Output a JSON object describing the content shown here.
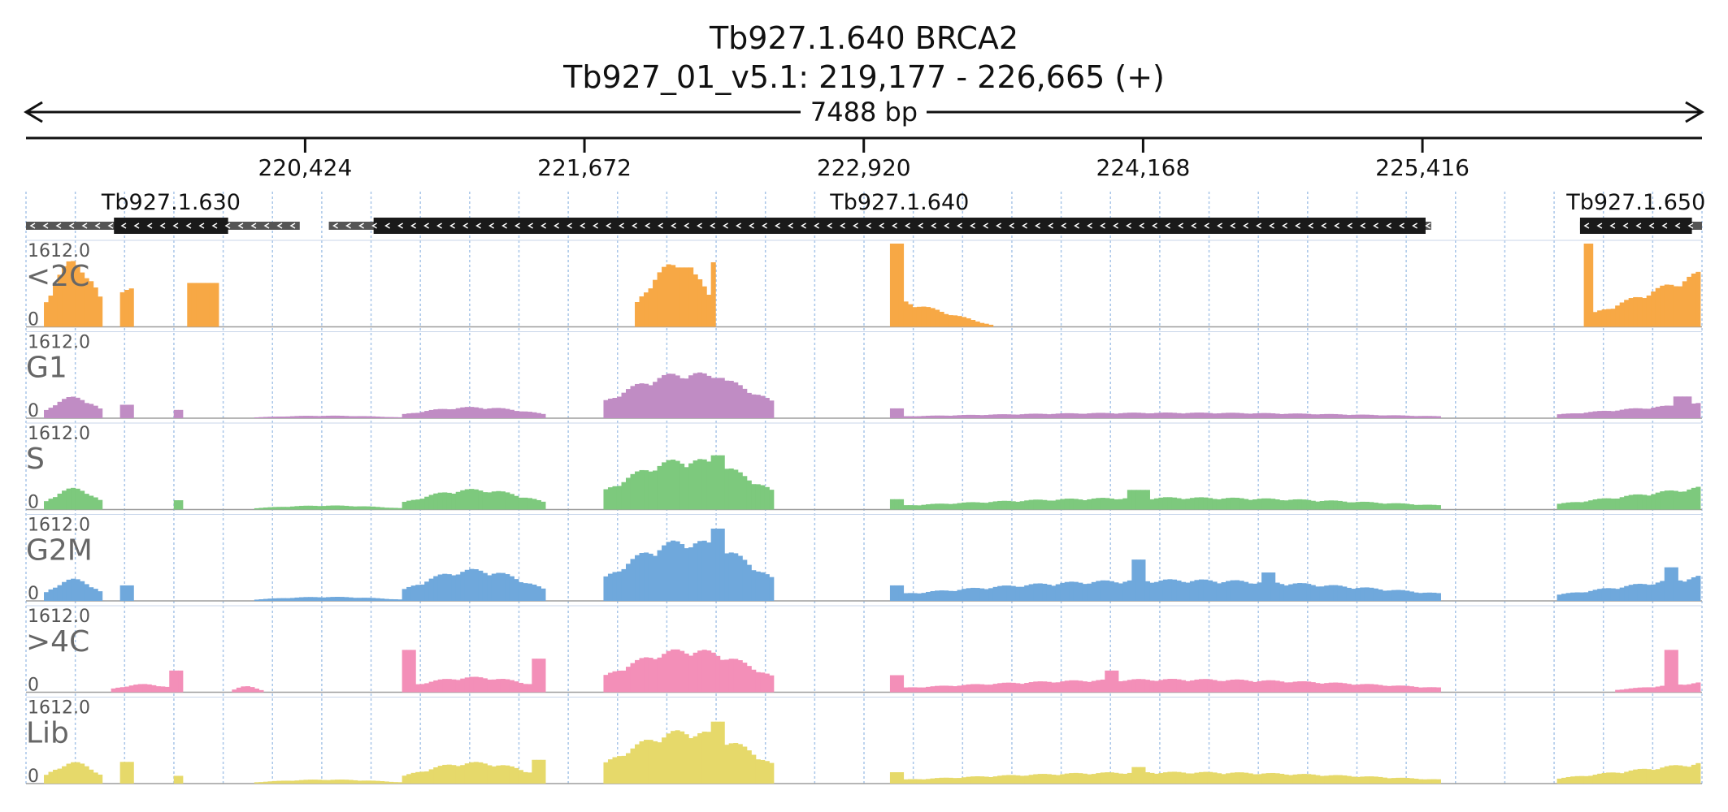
{
  "header": {
    "title": "Tb927.1.640  BRCA2",
    "subtitle": "Tb927_01_v5.1: 219,177 - 226,665 (+)",
    "span_label": "7488 bp"
  },
  "chart_data": {
    "type": "area",
    "x_range": [
      219177,
      226665
    ],
    "x_ticks": [
      {
        "pos": 220424,
        "label": "220,424"
      },
      {
        "pos": 221672,
        "label": "221,672"
      },
      {
        "pos": 222920,
        "label": "222,920"
      },
      {
        "pos": 224168,
        "label": "224,168"
      },
      {
        "pos": 225416,
        "label": "225,416"
      }
    ],
    "genes": [
      {
        "name": "Tb927.1.630",
        "start": 219177,
        "end": 220400,
        "cds_start": 219570,
        "cds_end": 220080,
        "strand": "-"
      },
      {
        "name": "Tb927.1.640",
        "start": 220530,
        "end": 225455,
        "cds_start": 220730,
        "cds_end": 225430,
        "strand": "-"
      },
      {
        "name": "Tb927.1.650",
        "start": 226120,
        "end": 226665,
        "cds_start": 226120,
        "cds_end": 226620,
        "strand": "-"
      }
    ],
    "tracks": [
      {
        "name": "<2C",
        "color": "#f7a845",
        "ylim": [
          0,
          1612.0
        ],
        "max_label": "1612.0",
        "min_label": "0",
        "peaks": [
          {
            "start": 219260,
            "end": 219520,
            "height": 1300,
            "shape": "hump"
          },
          {
            "start": 219590,
            "end": 219650,
            "height": 750,
            "shape": "flat"
          },
          {
            "start": 219890,
            "end": 220030,
            "height": 850,
            "shape": "block"
          },
          {
            "start": 221900,
            "end": 222260,
            "height": 1250,
            "shape": "hump"
          },
          {
            "start": 222040,
            "end": 222150,
            "height": 1150,
            "shape": "block"
          },
          {
            "start": 222230,
            "end": 222260,
            "height": 1250,
            "shape": "block"
          },
          {
            "start": 223040,
            "end": 223100,
            "height": 1612,
            "shape": "block"
          },
          {
            "start": 223100,
            "end": 223500,
            "height": 520,
            "shape": "decay"
          },
          {
            "start": 226130,
            "end": 226180,
            "height": 1612,
            "shape": "block"
          },
          {
            "start": 226180,
            "end": 226665,
            "height": 1100,
            "shape": "rise"
          }
        ]
      },
      {
        "name": "G1",
        "color": "#c08cc4",
        "ylim": [
          0,
          1612.0
        ],
        "max_label": "1612.0",
        "min_label": "0",
        "peaks": [
          {
            "start": 219260,
            "end": 219520,
            "height": 420,
            "shape": "hump"
          },
          {
            "start": 219590,
            "end": 219650,
            "height": 260,
            "shape": "block"
          },
          {
            "start": 219830,
            "end": 219870,
            "height": 160,
            "shape": "block"
          },
          {
            "start": 220200,
            "end": 220850,
            "height": 50,
            "shape": "hump"
          },
          {
            "start": 220860,
            "end": 221500,
            "height": 220,
            "shape": "hump"
          },
          {
            "start": 221750,
            "end": 222520,
            "height": 900,
            "shape": "hump"
          },
          {
            "start": 222240,
            "end": 222300,
            "height": 780,
            "shape": "block"
          },
          {
            "start": 223040,
            "end": 223100,
            "height": 190,
            "shape": "block"
          },
          {
            "start": 223100,
            "end": 225500,
            "height": 110,
            "shape": "hump"
          },
          {
            "start": 226020,
            "end": 226665,
            "height": 300,
            "shape": "rise"
          },
          {
            "start": 226540,
            "end": 226620,
            "height": 420,
            "shape": "block"
          }
        ]
      },
      {
        "name": "S",
        "color": "#7dc97d",
        "ylim": [
          0,
          1612.0
        ],
        "max_label": "1612.0",
        "min_label": "0",
        "peaks": [
          {
            "start": 219260,
            "end": 219520,
            "height": 420,
            "shape": "hump"
          },
          {
            "start": 219830,
            "end": 219870,
            "height": 180,
            "shape": "block"
          },
          {
            "start": 220200,
            "end": 220850,
            "height": 80,
            "shape": "hump"
          },
          {
            "start": 220860,
            "end": 221500,
            "height": 400,
            "shape": "hump"
          },
          {
            "start": 221750,
            "end": 222520,
            "height": 1000,
            "shape": "hump"
          },
          {
            "start": 222240,
            "end": 222300,
            "height": 1050,
            "shape": "block"
          },
          {
            "start": 223040,
            "end": 223100,
            "height": 200,
            "shape": "block"
          },
          {
            "start": 223100,
            "end": 225500,
            "height": 240,
            "shape": "hump"
          },
          {
            "start": 224100,
            "end": 224200,
            "height": 380,
            "shape": "block"
          },
          {
            "start": 226020,
            "end": 226665,
            "height": 450,
            "shape": "rise"
          }
        ]
      },
      {
        "name": "G2M",
        "color": "#6fa8dc",
        "ylim": [
          0,
          1612.0
        ],
        "max_label": "1612.0",
        "min_label": "0",
        "peaks": [
          {
            "start": 219260,
            "end": 219520,
            "height": 430,
            "shape": "hump"
          },
          {
            "start": 219590,
            "end": 219650,
            "height": 300,
            "shape": "block"
          },
          {
            "start": 220200,
            "end": 220850,
            "height": 80,
            "shape": "hump"
          },
          {
            "start": 220860,
            "end": 221500,
            "height": 620,
            "shape": "hump"
          },
          {
            "start": 221750,
            "end": 222520,
            "height": 1200,
            "shape": "hump"
          },
          {
            "start": 222240,
            "end": 222300,
            "height": 1400,
            "shape": "block"
          },
          {
            "start": 223040,
            "end": 223100,
            "height": 300,
            "shape": "block"
          },
          {
            "start": 223100,
            "end": 225500,
            "height": 420,
            "shape": "hump"
          },
          {
            "start": 224120,
            "end": 224180,
            "height": 800,
            "shape": "block"
          },
          {
            "start": 224700,
            "end": 224760,
            "height": 550,
            "shape": "block"
          },
          {
            "start": 226020,
            "end": 226665,
            "height": 500,
            "shape": "rise"
          },
          {
            "start": 226500,
            "end": 226550,
            "height": 650,
            "shape": "block"
          }
        ]
      },
      {
        "name": ">4C",
        "color": "#f38fb8",
        "ylim": [
          0,
          1612.0
        ],
        "max_label": "1612.0",
        "min_label": "0",
        "peaks": [
          {
            "start": 219550,
            "end": 219860,
            "height": 160,
            "shape": "hump"
          },
          {
            "start": 219810,
            "end": 219870,
            "height": 420,
            "shape": "block"
          },
          {
            "start": 220100,
            "end": 220230,
            "height": 120,
            "shape": "hump"
          },
          {
            "start": 220860,
            "end": 221500,
            "height": 300,
            "shape": "hump"
          },
          {
            "start": 220860,
            "end": 220920,
            "height": 820,
            "shape": "block"
          },
          {
            "start": 221440,
            "end": 221500,
            "height": 650,
            "shape": "block"
          },
          {
            "start": 221750,
            "end": 222520,
            "height": 850,
            "shape": "hump"
          },
          {
            "start": 223040,
            "end": 223100,
            "height": 330,
            "shape": "block"
          },
          {
            "start": 223100,
            "end": 225500,
            "height": 260,
            "shape": "hump"
          },
          {
            "start": 224000,
            "end": 224060,
            "height": 420,
            "shape": "block"
          },
          {
            "start": 226280,
            "end": 226665,
            "height": 200,
            "shape": "rise"
          },
          {
            "start": 226500,
            "end": 226550,
            "height": 820,
            "shape": "block"
          }
        ]
      },
      {
        "name": "Lib",
        "color": "#e6d96a",
        "ylim": [
          0,
          1612.0
        ],
        "max_label": "1612.0",
        "min_label": "0",
        "peaks": [
          {
            "start": 219260,
            "end": 219520,
            "height": 420,
            "shape": "hump"
          },
          {
            "start": 219590,
            "end": 219650,
            "height": 420,
            "shape": "block"
          },
          {
            "start": 219830,
            "end": 219870,
            "height": 150,
            "shape": "block"
          },
          {
            "start": 220200,
            "end": 220850,
            "height": 80,
            "shape": "hump"
          },
          {
            "start": 220860,
            "end": 221500,
            "height": 420,
            "shape": "hump"
          },
          {
            "start": 221440,
            "end": 221500,
            "height": 460,
            "shape": "block"
          },
          {
            "start": 221750,
            "end": 222520,
            "height": 1050,
            "shape": "hump"
          },
          {
            "start": 222240,
            "end": 222300,
            "height": 1200,
            "shape": "block"
          },
          {
            "start": 223040,
            "end": 223100,
            "height": 220,
            "shape": "block"
          },
          {
            "start": 223100,
            "end": 225500,
            "height": 230,
            "shape": "hump"
          },
          {
            "start": 224120,
            "end": 224180,
            "height": 320,
            "shape": "block"
          },
          {
            "start": 226020,
            "end": 226665,
            "height": 420,
            "shape": "rise"
          }
        ]
      }
    ]
  }
}
